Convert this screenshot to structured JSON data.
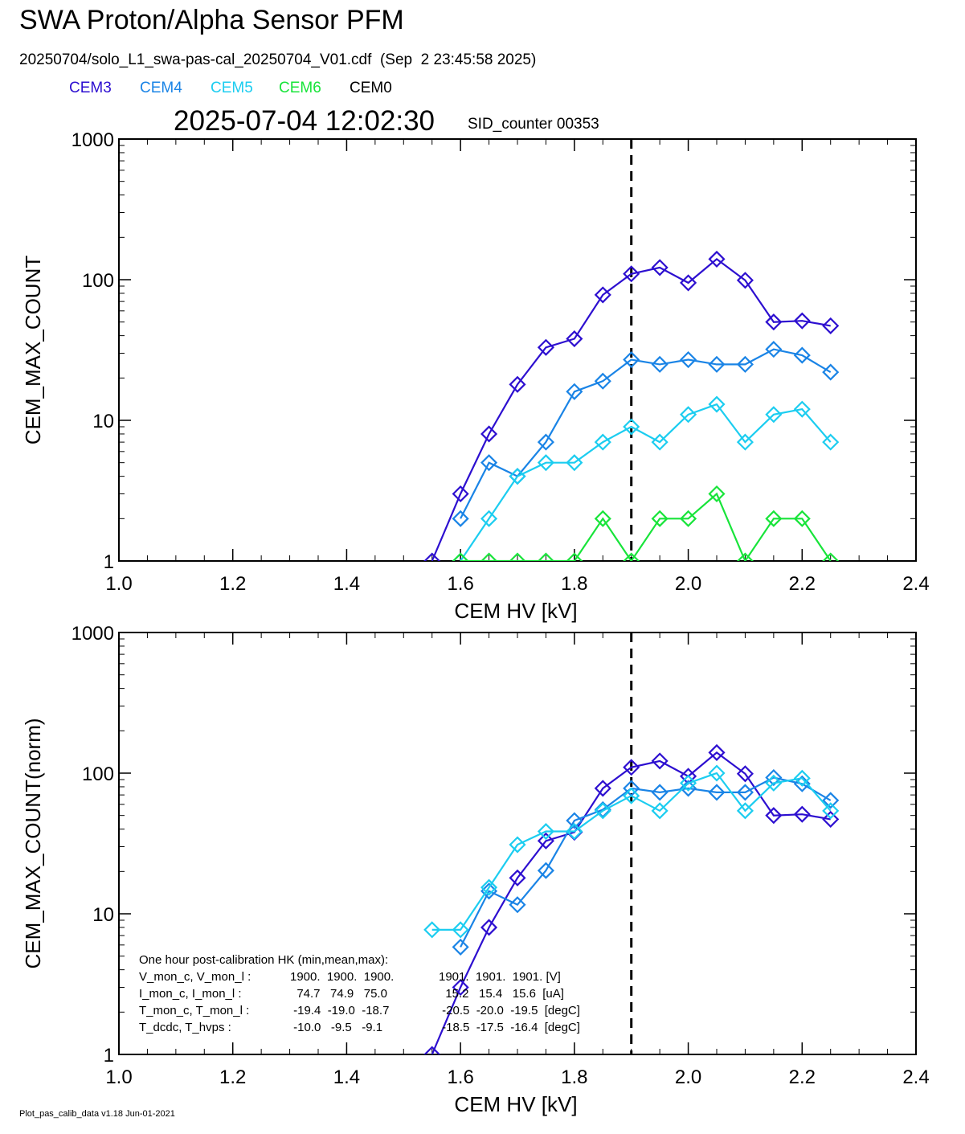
{
  "header": {
    "title": "SWA Proton/Alpha Sensor PFM",
    "subtitle": "20250704/solo_L1_swa-pas-cal_20250704_V01.cdf  (Sep  2 23:45:58 2025)",
    "timestamp": "2025-07-04 12:02:30",
    "sid_counter": "SID_counter 00353"
  },
  "legend": [
    {
      "label": "CEM3",
      "color": "#2d0fd0"
    },
    {
      "label": "CEM4",
      "color": "#1a84e6"
    },
    {
      "label": "CEM5",
      "color": "#1ccdf0"
    },
    {
      "label": "CEM6",
      "color": "#18e43a"
    },
    {
      "label": "CEM0",
      "color": "#000000"
    }
  ],
  "footer": "Plot_pas_calib_data v1.18 Jun-01-2021",
  "hk_box": {
    "heading": "One hour post-calibration HK (min,mean,max):",
    "rows": [
      {
        "label": "V_mon_c, V_mon_l :",
        "c": "1900.  1900.  1900.",
        "l": "1901.  1901.  1901. [V]"
      },
      {
        "label": "I_mon_c,  I_mon_l :",
        "c": "  74.7   74.9   75.0",
        "l": "  15.2   15.4   15.6  [uA]"
      },
      {
        "label": "T_mon_c, T_mon_l :",
        "c": " -19.4  -19.0  -18.7",
        "l": " -20.5  -20.0  -19.5  [degC]"
      },
      {
        "label": "T_dcdc,    T_hvps :",
        "c": " -10.0   -9.5   -9.1",
        "l": " -18.5  -17.5  -16.4  [degC]"
      }
    ]
  },
  "chart_data": [
    {
      "type": "line",
      "xlabel": "CEM HV [kV]",
      "ylabel": "CEM_MAX_COUNT",
      "xlim": [
        1.0,
        2.4
      ],
      "ylim": [
        1,
        1000
      ],
      "yscale": "log",
      "x_ticks": [
        "1.0",
        "1.2",
        "1.4",
        "1.6",
        "1.8",
        "2.0",
        "2.2",
        "2.4"
      ],
      "y_ticks": [
        "1",
        "10",
        "100",
        "1000"
      ],
      "vline_x": 1.9,
      "x": [
        1.55,
        1.6,
        1.65,
        1.7,
        1.75,
        1.8,
        1.85,
        1.9,
        1.95,
        2.0,
        2.05,
        2.1,
        2.15,
        2.2,
        2.25
      ],
      "series": [
        {
          "color": "#2d0fd0",
          "values": [
            1,
            3,
            8,
            18,
            33,
            38,
            78,
            110,
            122,
            95,
            140,
            99,
            50,
            51,
            47
          ]
        },
        {
          "color": "#1a84e6",
          "values": [
            null,
            2,
            5,
            4,
            7,
            16,
            19,
            27,
            25,
            27,
            25,
            25,
            32,
            29,
            22
          ]
        },
        {
          "color": "#1ccdf0",
          "values": [
            null,
            1,
            2,
            4,
            5,
            5,
            7,
            9,
            7,
            11,
            13,
            7,
            11,
            12,
            7
          ]
        },
        {
          "color": "#18e43a",
          "values": [
            null,
            1,
            1,
            1,
            1,
            1,
            2,
            1,
            2,
            2,
            3,
            1,
            2,
            2,
            1
          ]
        }
      ]
    },
    {
      "type": "line",
      "xlabel": "CEM HV [kV]",
      "ylabel": "CEM_MAX_COUNT(norm)",
      "xlim": [
        1.0,
        2.4
      ],
      "ylim": [
        1,
        1000
      ],
      "yscale": "log",
      "x_ticks": [
        "1.0",
        "1.2",
        "1.4",
        "1.6",
        "1.8",
        "2.0",
        "2.2",
        "2.4"
      ],
      "y_ticks": [
        "1",
        "10",
        "100",
        "1000"
      ],
      "vline_x": 1.9,
      "x": [
        1.55,
        1.6,
        1.65,
        1.7,
        1.75,
        1.8,
        1.85,
        1.9,
        1.95,
        2.0,
        2.05,
        2.1,
        2.15,
        2.2,
        2.25
      ],
      "series": [
        {
          "color": "#2d0fd0",
          "values": [
            1,
            3,
            8,
            18,
            33,
            38,
            78,
            110,
            122,
            95,
            140,
            99,
            50,
            51,
            47
          ]
        },
        {
          "color": "#1a84e6",
          "values": [
            null,
            5.8,
            14.5,
            11.6,
            20.3,
            46,
            55,
            78,
            73,
            78,
            73,
            73,
            93,
            84,
            64
          ]
        },
        {
          "color": "#1ccdf0",
          "values": [
            7.7,
            7.7,
            15.4,
            31,
            38.5,
            38.5,
            54,
            69,
            54,
            85,
            100,
            54,
            85,
            92,
            54
          ]
        }
      ]
    }
  ]
}
